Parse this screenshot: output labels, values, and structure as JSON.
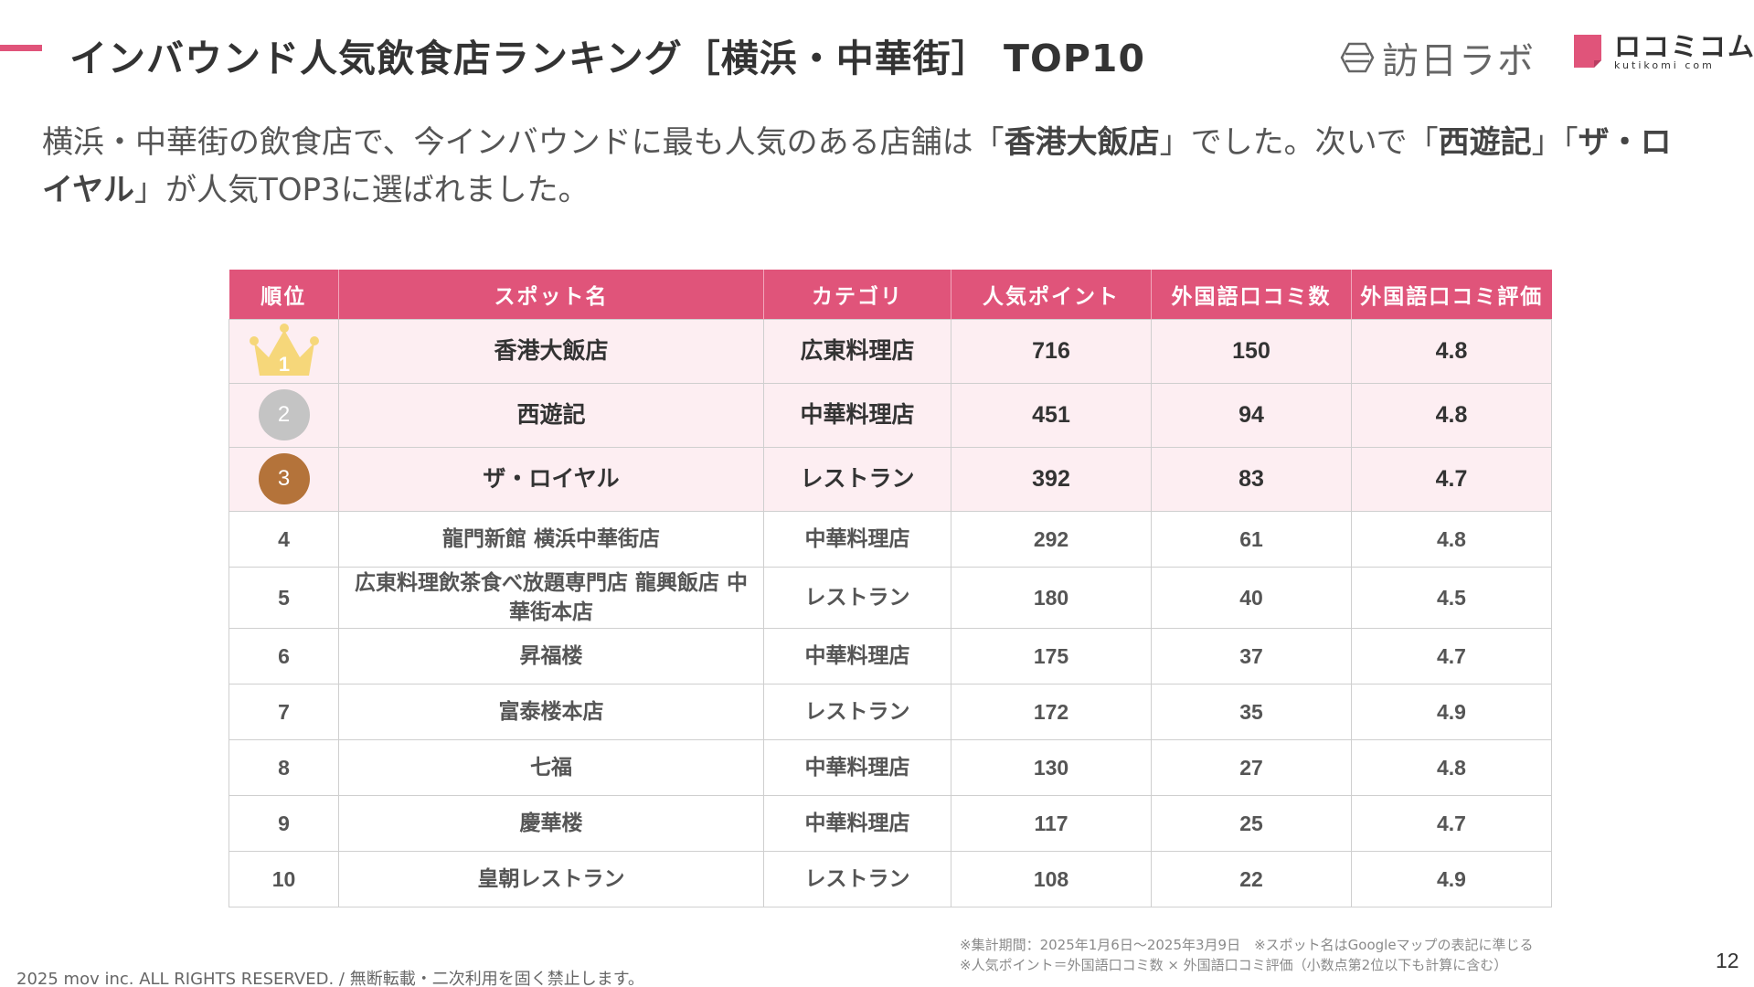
{
  "header": {
    "title": "インバウンド人気飲食店ランキング［横浜・中華街］ TOP10",
    "logo_labo": "訪日ラボ",
    "logo_kutikomi": "ロコミコム",
    "logo_kutikomi_sub": "kutikomi com"
  },
  "subtitle": {
    "part1": "横浜・中華街の飲食店で、今インバウンドに最も人気のある店舗は「",
    "bold1": "香港大飯店",
    "part2": "」でした。次いで「",
    "bold2": "西遊記",
    "part3": "」「",
    "bold3": "ザ・ロイヤル",
    "part4": "」が人気TOP3に選ばれました。"
  },
  "table": {
    "headers": [
      "順位",
      "スポット名",
      "カテゴリ",
      "人気ポイント",
      "外国語口コミ数",
      "外国語口コミ評価"
    ],
    "rows": [
      {
        "rank": "1",
        "name": "香港大飯店",
        "category": "広東料理店",
        "points": "716",
        "reviews": "150",
        "rating": "4.8"
      },
      {
        "rank": "2",
        "name": "西遊記",
        "category": "中華料理店",
        "points": "451",
        "reviews": "94",
        "rating": "4.8"
      },
      {
        "rank": "3",
        "name": "ザ・ロイヤル",
        "category": "レストラン",
        "points": "392",
        "reviews": "83",
        "rating": "4.7"
      },
      {
        "rank": "4",
        "name": "龍門新館 横浜中華街店",
        "category": "中華料理店",
        "points": "292",
        "reviews": "61",
        "rating": "4.8"
      },
      {
        "rank": "5",
        "name": "広東料理飲茶食べ放題専門店 龍興飯店 中華街本店",
        "category": "レストラン",
        "points": "180",
        "reviews": "40",
        "rating": "4.5"
      },
      {
        "rank": "6",
        "name": "昇福楼",
        "category": "中華料理店",
        "points": "175",
        "reviews": "37",
        "rating": "4.7"
      },
      {
        "rank": "7",
        "name": "富泰楼本店",
        "category": "レストラン",
        "points": "172",
        "reviews": "35",
        "rating": "4.9"
      },
      {
        "rank": "8",
        "name": "七福",
        "category": "中華料理店",
        "points": "130",
        "reviews": "27",
        "rating": "4.8"
      },
      {
        "rank": "9",
        "name": "慶華楼",
        "category": "中華料理店",
        "points": "117",
        "reviews": "25",
        "rating": "4.7"
      },
      {
        "rank": "10",
        "name": "皇朝レストラン",
        "category": "レストラン",
        "points": "108",
        "reviews": "22",
        "rating": "4.9"
      }
    ]
  },
  "notes": {
    "line1": "※集計期間：2025年1月6日〜2025年3月9日　※スポット名はGoogleマップの表記に準じる",
    "line2": "※人気ポイント＝外国語口コミ数 × 外国語口コミ評価（小数点第2位以下も計算に含む）"
  },
  "footer": {
    "copyright": "2025 mov inc. ALL RIGHTS RESERVED. / 無断転載・二次利用を固く禁止します。",
    "page": "12"
  },
  "colors": {
    "accent": "#e0547a",
    "top_row_bg": "#fdeef2",
    "gold": "#f6d77a",
    "silver": "#c4c4c4",
    "bronze": "#b4733a"
  }
}
